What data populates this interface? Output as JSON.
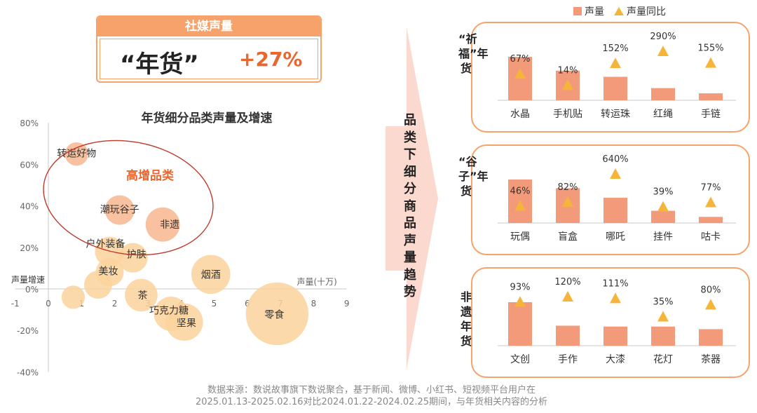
{
  "header": {
    "title": "社媒声量",
    "quote": "“年货”",
    "growth": "+27%"
  },
  "colors": {
    "orange_border": "#f7a26a",
    "bar": "#f29a7a",
    "triangle": "#f5b53a",
    "bubble": "#fbd29b",
    "bubble_high": "#f7b68e",
    "ellipse": "#c0392b",
    "accent_text": "#e9662e"
  },
  "main_title": "品类下细分商品声量趋势",
  "footer": {
    "line1": "数据来源：数说故事旗下数说聚合，基于新闻、微博、小红书、短视频平台用户在",
    "line2": "2025.01.13-2025.02.16对比2024.01.22-2024.02.25期间，与年货相关内容的分析"
  },
  "chart_data": [
    {
      "type": "scatter",
      "title": "年货细分品类声量及增速",
      "xlabel": "声量(十万)",
      "ylabel": "声量增速",
      "xlim": [
        -1,
        9
      ],
      "ylim": [
        -40,
        80
      ],
      "x_ticks": [
        "-1",
        "0",
        "1",
        "2",
        "3",
        "4",
        "5",
        "6",
        "7",
        "8",
        "9"
      ],
      "y_ticks": [
        "-40%",
        "-20%",
        "0%",
        "20%",
        "40%",
        "60%",
        "80%"
      ],
      "annotation": "高增品类",
      "points": [
        {
          "label": "转运好物",
          "x": 0.85,
          "y": 65,
          "size": 0.6,
          "high": true
        },
        {
          "label": "潮玩谷子",
          "x": 2.15,
          "y": 38,
          "size": 1.0,
          "high": true
        },
        {
          "label": "非遗",
          "x": 3.45,
          "y": 31,
          "size": 1.3,
          "high": true
        },
        {
          "label": "户外装备",
          "x": 1.85,
          "y": 18,
          "size": 1.0,
          "high": false
        },
        {
          "label": "护肤",
          "x": 2.55,
          "y": 15,
          "size": 1.0,
          "high": false
        },
        {
          "label": "美妆",
          "x": 1.85,
          "y": 8,
          "size": 0.9,
          "high": false
        },
        {
          "label": "",
          "x": 1.5,
          "y": 2,
          "size": 0.9,
          "high": false
        },
        {
          "label": "",
          "x": 0.75,
          "y": -4,
          "size": 0.6,
          "high": false
        },
        {
          "label": "烟酒",
          "x": 4.9,
          "y": 7,
          "size": 1.6,
          "high": false
        },
        {
          "label": "茶",
          "x": 2.8,
          "y": -3,
          "size": 1.2,
          "high": false
        },
        {
          "label": "巧克力糖",
          "x": 3.7,
          "y": -12,
          "size": 1.3,
          "high": false
        },
        {
          "label": "坚果",
          "x": 4.1,
          "y": -16,
          "size": 1.5,
          "high": false
        },
        {
          "label": "零食",
          "x": 6.9,
          "y": -12,
          "size": 2.4,
          "high": false
        }
      ]
    },
    {
      "type": "bar",
      "group": "“祈福”年货",
      "categories": [
        "水晶",
        "手机贴",
        "转运珠",
        "红绳",
        "手链"
      ],
      "volume": [
        5.0,
        3.4,
        2.7,
        1.4,
        0.8
      ],
      "growth": [
        67,
        14,
        152,
        290,
        155
      ],
      "growth_labels": [
        "67%",
        "14%",
        "152%",
        "290%",
        "155%"
      ]
    },
    {
      "type": "bar",
      "group": "“谷子”年货",
      "categories": [
        "玩偶",
        "盲盒",
        "哪吒",
        "挂件",
        "咕卡"
      ],
      "volume": [
        5.0,
        4.0,
        2.9,
        1.4,
        0.7
      ],
      "growth": [
        46,
        82,
        640,
        39,
        77
      ],
      "growth_labels": [
        "46%",
        "82%",
        "640%",
        "39%",
        "77%"
      ]
    },
    {
      "type": "bar",
      "group": "非遗年货",
      "categories": [
        "文创",
        "手作",
        "大漆",
        "花灯",
        "茶器"
      ],
      "volume": [
        5.0,
        2.3,
        2.2,
        2.2,
        1.9
      ],
      "growth": [
        93,
        120,
        111,
        35,
        80
      ],
      "growth_labels": [
        "93%",
        "120%",
        "111%",
        "35%",
        "80%"
      ]
    }
  ],
  "legend": {
    "volume": "声量",
    "growth": "声量同比"
  }
}
